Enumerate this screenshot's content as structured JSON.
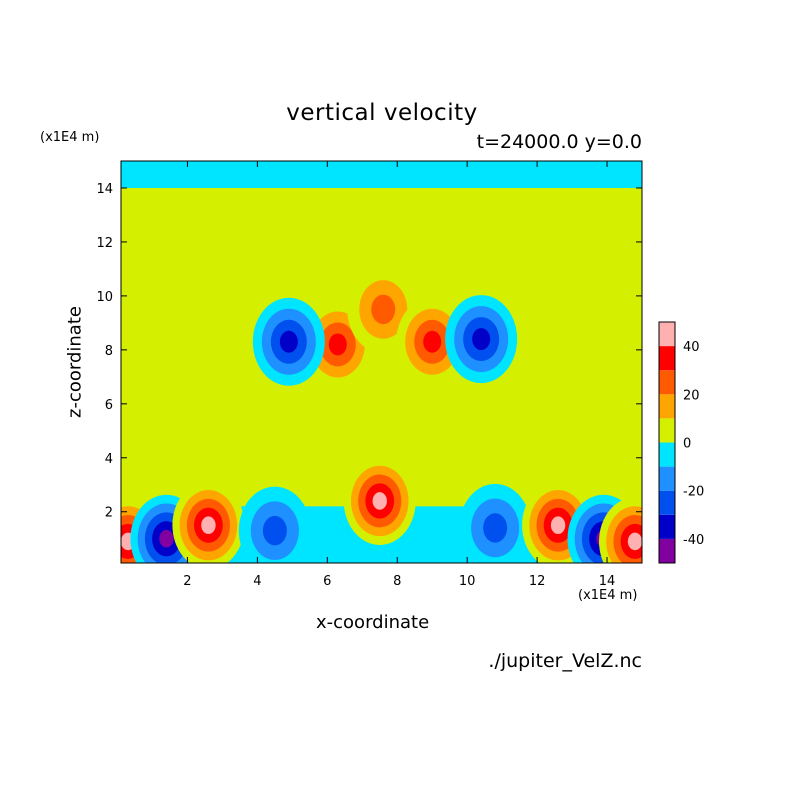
{
  "chart_data": {
    "type": "heatmap",
    "title": "vertical velocity",
    "subtitle": "t=24000.0 y=0.0",
    "xlabel": "x-coordinate",
    "ylabel": "z-coordinate",
    "x_unit": "(x1E4 m)",
    "z_unit": "(x1E4 m)",
    "source": "./jupiter_VelZ.nc",
    "xlim": [
      0.1,
      15
    ],
    "ylim": [
      0.1,
      15
    ],
    "x_ticks": [
      2,
      4,
      6,
      8,
      10,
      12,
      14
    ],
    "y_ticks": [
      2,
      4,
      6,
      8,
      10,
      12,
      14
    ],
    "colorbar": {
      "levels": [
        -50,
        -40,
        -30,
        -20,
        -10,
        0,
        10,
        20,
        30,
        40,
        50
      ],
      "colors": [
        "#8000a0",
        "#0000c8",
        "#0050f0",
        "#1e90ff",
        "#00e5ff",
        "#d4f000",
        "#ffa500",
        "#ff5a00",
        "#ff0000",
        "#ffb0b0"
      ],
      "tick_labels": [
        "-40",
        "-20",
        "0",
        "20",
        "40"
      ],
      "tick_values": [
        -40,
        -20,
        0,
        20,
        40
      ]
    },
    "features": [
      {
        "x": 0.3,
        "z": 0.9,
        "w": 50
      },
      {
        "x": 1.4,
        "z": 1.0,
        "w": -48
      },
      {
        "x": 2.6,
        "z": 1.5,
        "w": 48
      },
      {
        "x": 4.5,
        "z": 1.3,
        "w": -30
      },
      {
        "x": 6.3,
        "z": 8.2,
        "w": 32
      },
      {
        "x": 4.9,
        "z": 8.3,
        "w": -32
      },
      {
        "x": 7.5,
        "z": 2.4,
        "w": 50
      },
      {
        "x": 7.6,
        "z": 9.5,
        "w": 22
      },
      {
        "x": 9.0,
        "z": 8.3,
        "w": 32
      },
      {
        "x": 10.4,
        "z": 8.4,
        "w": -32
      },
      {
        "x": 10.8,
        "z": 1.4,
        "w": -30
      },
      {
        "x": 12.6,
        "z": 1.5,
        "w": 48
      },
      {
        "x": 13.9,
        "z": 1.0,
        "w": -48
      },
      {
        "x": 14.8,
        "z": 0.9,
        "w": 50
      }
    ]
  }
}
